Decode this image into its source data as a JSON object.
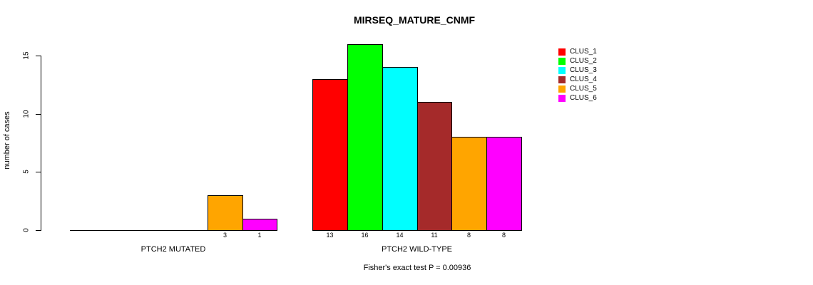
{
  "chart_data": {
    "type": "bar",
    "title": "MIRSEQ_MATURE_CNMF",
    "ylabel": "number of cases",
    "xlabel": "",
    "ylim": [
      0,
      15
    ],
    "yticks": [
      0,
      5,
      10,
      15
    ],
    "grid": false,
    "legend_position": "right",
    "series_names": [
      "CLUS_1",
      "CLUS_2",
      "CLUS_3",
      "CLUS_4",
      "CLUS_5",
      "CLUS_6"
    ],
    "colors": [
      "#FF0000",
      "#00FF00",
      "#00FFFF",
      "#A52A2A",
      "#FFA500",
      "#FF00FF"
    ],
    "groups": [
      {
        "label": "PTCH2 MUTATED",
        "values": [
          0,
          0,
          0,
          0,
          3,
          1
        ],
        "value_labels": [
          "",
          "",
          "",
          "",
          "3",
          "1"
        ]
      },
      {
        "label": "PTCH2 WILD-TYPE",
        "values": [
          13,
          16,
          14,
          11,
          8,
          8
        ],
        "value_labels": [
          "13",
          "16",
          "14",
          "11",
          "8",
          "8"
        ]
      }
    ],
    "annotation": "Fisher's exact test P = 0.00936"
  },
  "legend": {
    "entries": [
      {
        "label": "CLUS_1",
        "color": "#FF0000"
      },
      {
        "label": "CLUS_2",
        "color": "#00FF00"
      },
      {
        "label": "CLUS_3",
        "color": "#00FFFF"
      },
      {
        "label": "CLUS_4",
        "color": "#A52A2A"
      },
      {
        "label": "CLUS_5",
        "color": "#FFA500"
      },
      {
        "label": "CLUS_6",
        "color": "#FF00FF"
      }
    ]
  }
}
